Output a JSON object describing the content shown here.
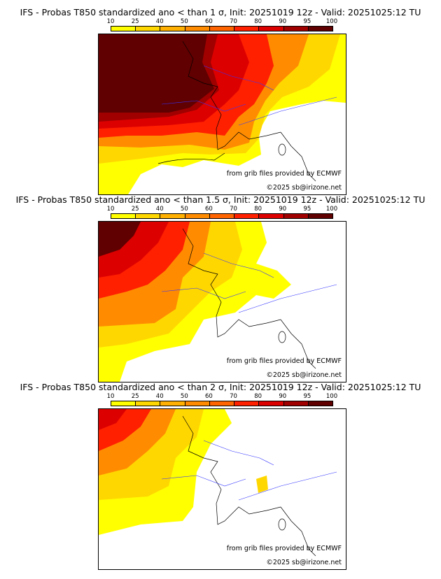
{
  "colorbar": {
    "ticks": [
      "10",
      "25",
      "40",
      "50",
      "60",
      "70",
      "80",
      "90",
      "95",
      "100"
    ],
    "colors": [
      "#ffff00",
      "#ffd700",
      "#ffb000",
      "#ff8c00",
      "#ff6400",
      "#ff2000",
      "#dd0000",
      "#a00000",
      "#600000"
    ]
  },
  "panels": [
    {
      "title": "IFS - Probas T850  standardized ano < than 1 σ, Init: 20251019 12z - Valid: 20251025:12 TU"
    },
    {
      "title": "IFS - Probas T850  standardized ano < than 1.5 σ, Init: 20251019 12z - Valid: 20251025:12 TU"
    },
    {
      "title": "IFS - Probas T850  standardized ano < than 2 σ, Init: 20251019 12z - Valid: 20251025:12 TU"
    }
  ],
  "credits": {
    "source": "from grib files provided by ECMWF",
    "copyright": "©2025 sb@irizone.net"
  }
}
